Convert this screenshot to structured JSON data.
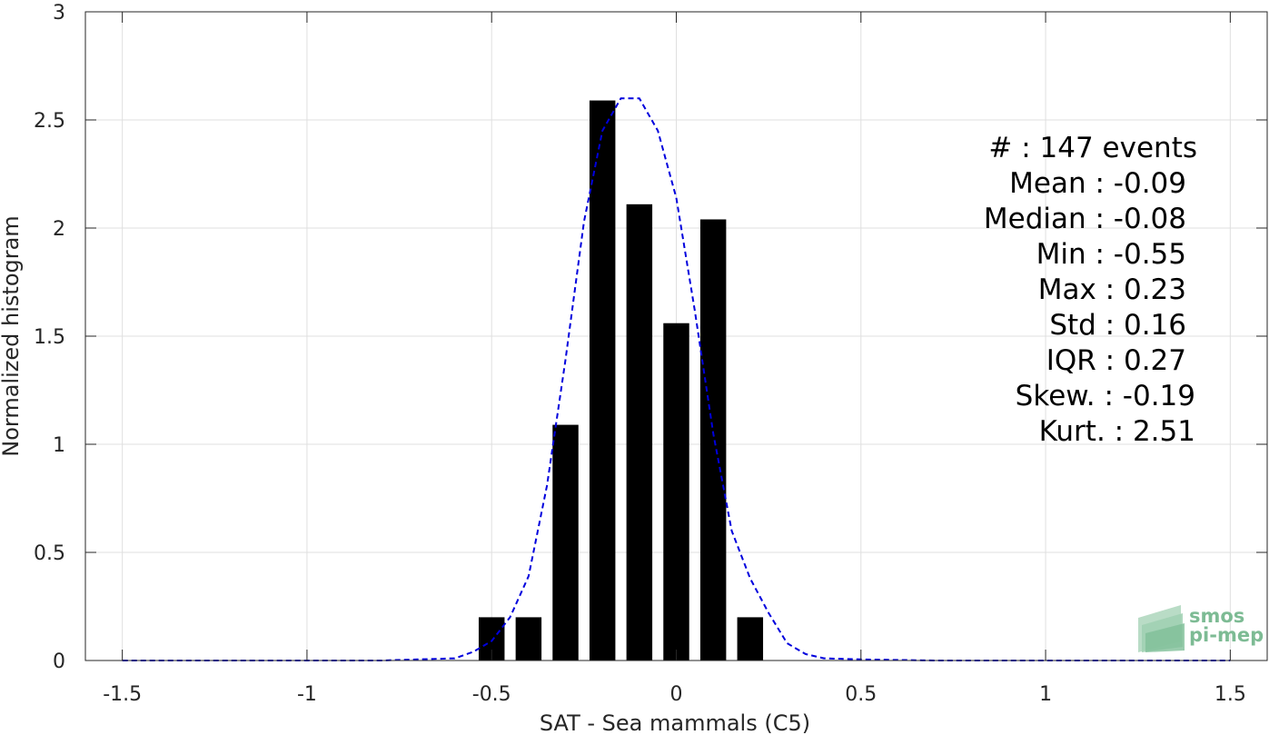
{
  "chart_data": {
    "type": "bar",
    "xlabel": "SAT - Sea mammals (C5)",
    "ylabel": "Normalized histogram",
    "xlim": [
      -1.6,
      1.6
    ],
    "ylim": [
      0,
      3
    ],
    "xticks": [
      -1.5,
      -1,
      -0.5,
      0,
      0.5,
      1,
      1.5
    ],
    "xtick_labels": [
      "-1.5",
      "-1",
      "-0.5",
      "0",
      "0.5",
      "1",
      "1.5"
    ],
    "yticks": [
      0,
      0.5,
      1,
      1.5,
      2,
      2.5,
      3
    ],
    "ytick_labels": [
      "0",
      "0.5",
      "1",
      "1.5",
      "2",
      "2.5",
      "3"
    ],
    "grid": true,
    "bar_color": "#000000",
    "bar_width": 0.07,
    "bins": [
      {
        "x": -0.5,
        "value": 0.2
      },
      {
        "x": -0.4,
        "value": 0.2
      },
      {
        "x": -0.3,
        "value": 1.09
      },
      {
        "x": -0.2,
        "value": 2.59
      },
      {
        "x": -0.1,
        "value": 2.11
      },
      {
        "x": 0.0,
        "value": 1.56
      },
      {
        "x": 0.1,
        "value": 2.04
      },
      {
        "x": 0.2,
        "value": 0.2
      }
    ],
    "fit_line": {
      "style": "dashed",
      "color": "#0000dd",
      "x": [
        -1.5,
        -1.2,
        -1.0,
        -0.8,
        -0.7,
        -0.6,
        -0.55,
        -0.5,
        -0.45,
        -0.4,
        -0.35,
        -0.3,
        -0.25,
        -0.2,
        -0.15,
        -0.1,
        -0.05,
        0.0,
        0.05,
        0.1,
        0.15,
        0.2,
        0.25,
        0.3,
        0.35,
        0.4,
        0.5,
        0.7,
        1.0,
        1.5
      ],
      "y": [
        0.0,
        0.0,
        0.0,
        0.0,
        0.005,
        0.01,
        0.04,
        0.09,
        0.2,
        0.39,
        0.81,
        1.39,
        2.03,
        2.45,
        2.6,
        2.6,
        2.45,
        2.14,
        1.62,
        1.05,
        0.6,
        0.38,
        0.22,
        0.08,
        0.03,
        0.01,
        0.005,
        0.0,
        0.0,
        0.0
      ]
    }
  },
  "stats": {
    "count": "#  : 147 events",
    "mean": "Mean : -0.09",
    "median": "Median : -0.08",
    "min": "Min : -0.55",
    "max": "Max : 0.23",
    "std": "Std : 0.16",
    "iqr": "IQR : 0.27",
    "skew": "Skew. : -0.19",
    "kurt": "Kurt. : 2.51"
  },
  "logo": {
    "line1": "smos",
    "line2": "pi-mep",
    "color": "#7dbb94"
  }
}
